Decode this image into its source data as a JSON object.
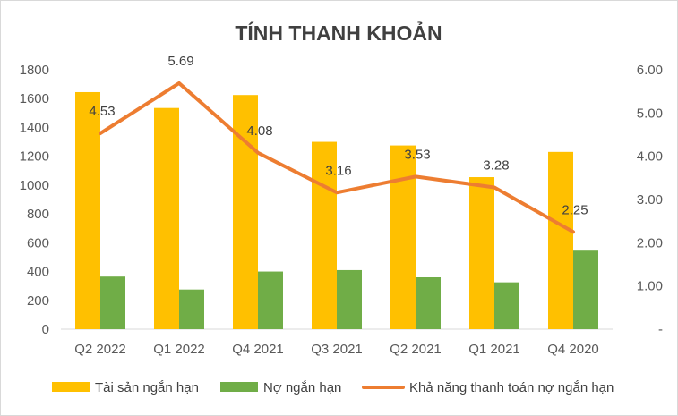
{
  "chart_data": {
    "type": "bar",
    "title": "TÍNH THANH KHOẢN",
    "categories": [
      "Q2 2022",
      "Q1 2022",
      "Q4 2021",
      "Q3 2021",
      "Q2 2021",
      "Q1 2021",
      "Q4 2020"
    ],
    "series": [
      {
        "name": "Tài sản ngắn hạn",
        "type": "bar",
        "axis": "left",
        "color": "#ffc000",
        "values": [
          1645,
          1535,
          1625,
          1300,
          1275,
          1055,
          1230
        ]
      },
      {
        "name": "Nợ ngắn hạn",
        "type": "bar",
        "axis": "left",
        "color": "#70ad47",
        "values": [
          365,
          275,
          400,
          410,
          360,
          325,
          545
        ]
      },
      {
        "name": "Khả năng thanh toán nợ ngắn hạn",
        "type": "line",
        "axis": "right",
        "color": "#ed7d31",
        "values": [
          4.53,
          5.69,
          4.08,
          3.16,
          3.53,
          3.28,
          2.25
        ],
        "labels": [
          "4.53",
          "5.69",
          "4.08",
          "3.16",
          "3.53",
          "3.28",
          "2.25"
        ]
      }
    ],
    "y_left": {
      "ylim": [
        0,
        1800
      ],
      "ticks": [
        "0",
        "200",
        "400",
        "600",
        "800",
        "1000",
        "1200",
        "1400",
        "1600",
        "1800"
      ]
    },
    "y_right": {
      "ylim": [
        0,
        6
      ],
      "ticks": [
        "-",
        "1.00",
        "2.00",
        "3.00",
        "4.00",
        "5.00",
        "6.00"
      ]
    },
    "legend": "bottom",
    "grid": false
  }
}
